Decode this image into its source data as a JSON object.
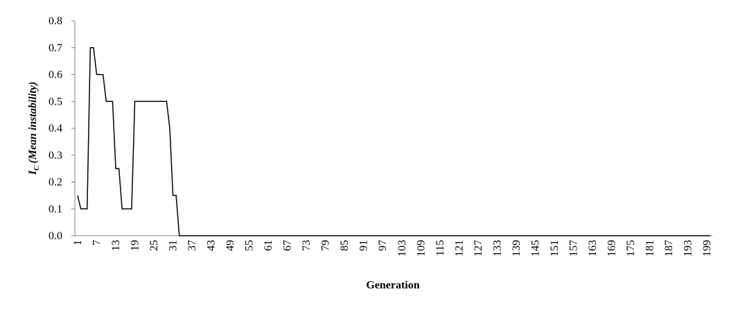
{
  "chart_data": {
    "type": "line",
    "x_label": "Generation",
    "y_label": {
      "symbol": "I",
      "subscript": "C",
      "text": "(Mean instability)"
    },
    "categories": [
      "1",
      null,
      null,
      null,
      null,
      null,
      "7",
      null,
      null,
      null,
      null,
      null,
      "13",
      null,
      null,
      null,
      null,
      null,
      "19",
      null,
      null,
      null,
      null,
      null,
      "25",
      null,
      null,
      null,
      null,
      null,
      "31",
      null,
      null,
      null,
      null,
      null,
      "37",
      null,
      null,
      null,
      null,
      null,
      "43",
      null,
      null,
      null,
      null,
      null,
      "49",
      null,
      null,
      null,
      null,
      null,
      "55",
      null,
      null,
      null,
      null,
      null,
      "61",
      null,
      null,
      null,
      null,
      null,
      "67",
      null,
      null,
      null,
      null,
      null,
      "73",
      null,
      null,
      null,
      null,
      null,
      "79",
      null,
      null,
      null,
      null,
      null,
      "85",
      null,
      null,
      null,
      null,
      null,
      "91",
      null,
      null,
      null,
      null,
      null,
      "97",
      null,
      null,
      null,
      null,
      null,
      "103",
      null,
      null,
      null,
      null,
      null,
      "109",
      null,
      null,
      null,
      null,
      null,
      "115",
      null,
      null,
      null,
      null,
      null,
      "121",
      null,
      null,
      null,
      null,
      null,
      "127",
      null,
      null,
      null,
      null,
      null,
      "133",
      null,
      null,
      null,
      null,
      null,
      "139",
      null,
      null,
      null,
      null,
      null,
      "145",
      null,
      null,
      null,
      null,
      null,
      "151",
      null,
      null,
      null,
      null,
      null,
      "157",
      null,
      null,
      null,
      null,
      null,
      "163",
      null,
      null,
      null,
      null,
      null,
      "169",
      null,
      null,
      null,
      null,
      null,
      "175",
      null,
      null,
      null,
      null,
      null,
      "181",
      null,
      null,
      null,
      null,
      null,
      "187",
      null,
      null,
      null,
      null,
      null,
      "193",
      null,
      null,
      null,
      null,
      null,
      "199",
      null
    ],
    "values": [
      0.15,
      0.1,
      0.1,
      0.1,
      0.7,
      0.7,
      0.6,
      0.6,
      0.6,
      0.5,
      0.5,
      0.5,
      0.25,
      0.25,
      0.1,
      0.1,
      0.1,
      0.1,
      0.5,
      0.5,
      0.5,
      0.5,
      0.5,
      0.5,
      0.5,
      0.5,
      0.5,
      0.5,
      0.5,
      0.4,
      0.15,
      0.15,
      0,
      0,
      0,
      0,
      0,
      0,
      0,
      0,
      0,
      0,
      0,
      0,
      0,
      0,
      0,
      0,
      0,
      0,
      0,
      0,
      0,
      0,
      0,
      0,
      0,
      0,
      0,
      0,
      0,
      0,
      0,
      0,
      0,
      0,
      0,
      0,
      0,
      0,
      0,
      0,
      0,
      0,
      0,
      0,
      0,
      0,
      0,
      0,
      0,
      0,
      0,
      0,
      0,
      0,
      0,
      0,
      0,
      0,
      0,
      0,
      0,
      0,
      0,
      0,
      0,
      0,
      0,
      0,
      0,
      0,
      0,
      0,
      0,
      0,
      0,
      0,
      0,
      0,
      0,
      0,
      0,
      0,
      0,
      0,
      0,
      0,
      0,
      0,
      0,
      0,
      0,
      0,
      0,
      0,
      0,
      0,
      0,
      0,
      0,
      0,
      0,
      0,
      0,
      0,
      0,
      0,
      0,
      0,
      0,
      0,
      0,
      0,
      0,
      0,
      0,
      0,
      0,
      0,
      0,
      0,
      0,
      0,
      0,
      0,
      0,
      0,
      0,
      0,
      0,
      0,
      0,
      0,
      0,
      0,
      0,
      0,
      0,
      0,
      0,
      0,
      0,
      0,
      0,
      0,
      0,
      0,
      0,
      0,
      0,
      0,
      0,
      0,
      0,
      0,
      0,
      0,
      0,
      0,
      0,
      0,
      0,
      0,
      0,
      0,
      0,
      0,
      0,
      0
    ],
    "color": "#000000",
    "ylim": [
      0,
      0.8
    ],
    "yticks": [
      {
        "value": 0,
        "label": "0.0"
      },
      0.1,
      0.2,
      0.3,
      0.4,
      0.5,
      0.6,
      0.7,
      0.8
    ],
    "grid": false
  }
}
